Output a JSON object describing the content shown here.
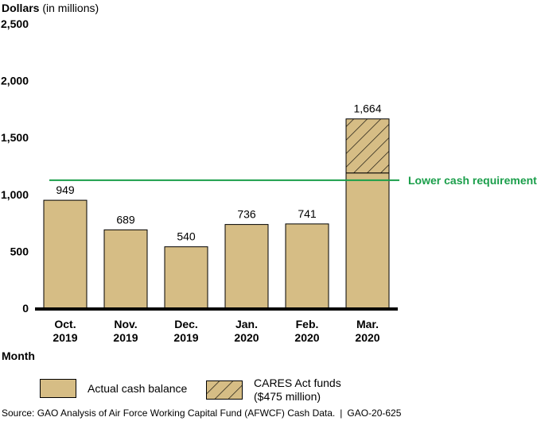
{
  "chart_data": {
    "type": "bar",
    "title": "",
    "ylabel_bold": "Dollars",
    "ylabel_unit": "(in millions)",
    "xlabel": "Month",
    "ylim": [
      0,
      2500
    ],
    "yticks": [
      0,
      500,
      1000,
      1500,
      2000,
      2500
    ],
    "ytick_labels": [
      "0",
      "500",
      "1,000",
      "1,500",
      "2,000",
      "2,500"
    ],
    "categories": [
      [
        "Oct.",
        "2019"
      ],
      [
        "Nov.",
        "2019"
      ],
      [
        "Dec.",
        "2019"
      ],
      [
        "Jan.",
        "2020"
      ],
      [
        "Feb.",
        "2020"
      ],
      [
        "Mar.",
        "2020"
      ]
    ],
    "series": [
      {
        "name": "Actual cash balance",
        "values": [
          949,
          689,
          540,
          736,
          741,
          1189
        ]
      },
      {
        "name": "CARES Act funds\n($475 million)",
        "values": [
          0,
          0,
          0,
          0,
          0,
          475
        ]
      }
    ],
    "data_labels": [
      "949",
      "689",
      "540",
      "736",
      "741",
      "1,664"
    ],
    "reference_line": {
      "label": "Lower cash requirement",
      "value": 1125,
      "color": "#1a9e4a"
    },
    "colors": {
      "actual": "#d6bd85",
      "cares": "#d6bd85",
      "hatch": "#000000",
      "axis": "#000000"
    },
    "grid": false,
    "legend_position": "bottom"
  },
  "source": {
    "text": "Source: GAO Analysis of Air Force Working Capital Fund (AFWCF) Cash Data.",
    "separator": "|",
    "report": "GAO-20-625"
  }
}
